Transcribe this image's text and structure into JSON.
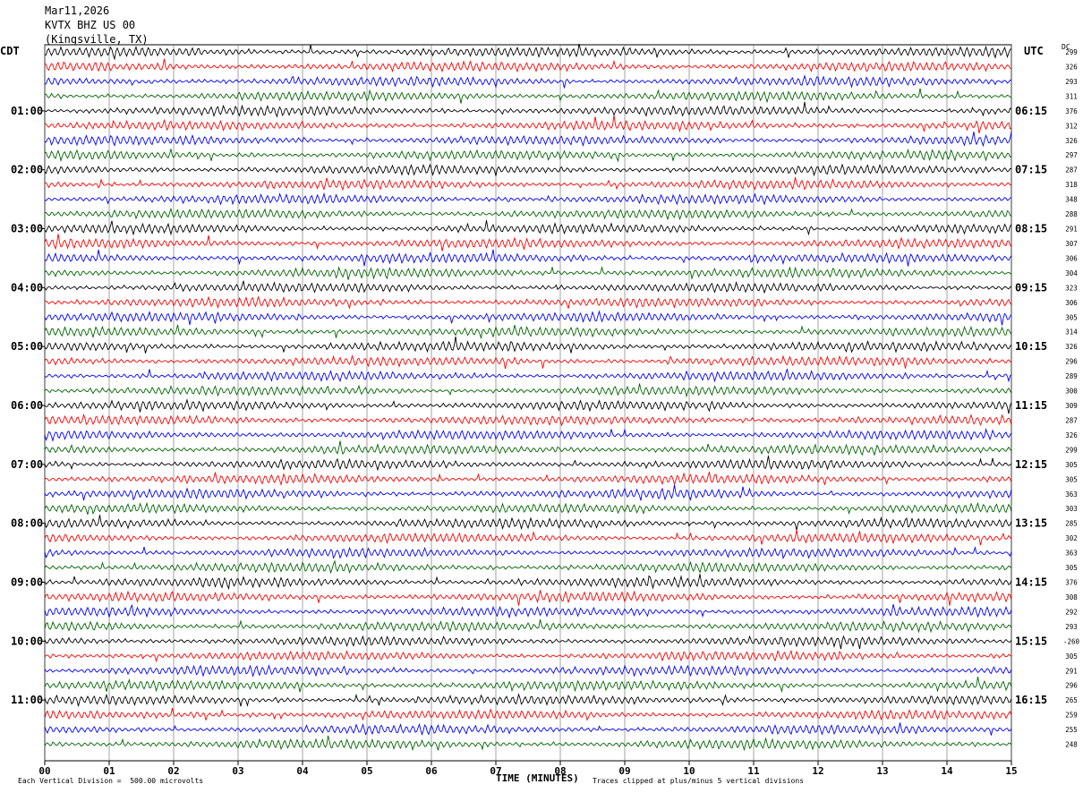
{
  "header": {
    "date": "Mar11,2026",
    "station": "KVTX BHZ US 00",
    "location": "(Kingsville, TX)"
  },
  "left_zone": "CDT",
  "right_zone": "UTC",
  "dc_label": "DC",
  "footer": {
    "scale_note": "Each Vertical Division =  500.00 microvolts",
    "x_axis_title": "TIME (MINUTES)",
    "clip_note": "Traces clipped at plus/minus 5 vertical divisions"
  },
  "chart_data": {
    "type": "line",
    "title": "",
    "xlabel": "TIME (MINUTES)",
    "xlim": [
      0,
      15
    ],
    "x_ticks": [
      "00",
      "01",
      "02",
      "03",
      "04",
      "05",
      "06",
      "07",
      "08",
      "09",
      "10",
      "11",
      "12",
      "13",
      "14",
      "15"
    ],
    "grid": true,
    "trace_colors": [
      "#000000",
      "#ff0000",
      "#0000ff",
      "#006400"
    ],
    "left_hour_labels": [
      "01:00",
      "02:00",
      "03:00",
      "04:00",
      "05:00",
      "06:00",
      "07:00",
      "08:00",
      "09:00",
      "10:00",
      "11:00"
    ],
    "right_hour_labels": [
      "06:15",
      "07:15",
      "08:15",
      "09:15",
      "10:15",
      "11:15",
      "12:15",
      "13:15",
      "14:15",
      "15:15",
      "16:15"
    ],
    "dc_offsets": [
      "299",
      "326",
      "293",
      "311",
      "376",
      "312",
      "326",
      "297",
      "287",
      "318",
      "348",
      "288",
      "291",
      "307",
      "306",
      "304",
      "323",
      "306",
      "305",
      "314",
      "326",
      "296",
      "289",
      "300",
      "309",
      "287",
      "326",
      "299",
      "305",
      "305",
      "363",
      "303",
      "285",
      "302",
      "363",
      "305",
      "376",
      "308",
      "292",
      "293",
      "-260",
      "305",
      "291",
      "296",
      "265",
      "259",
      "255",
      "248"
    ],
    "trace_count": 48,
    "traces_per_hour": 4,
    "minutes_per_trace": 15
  }
}
